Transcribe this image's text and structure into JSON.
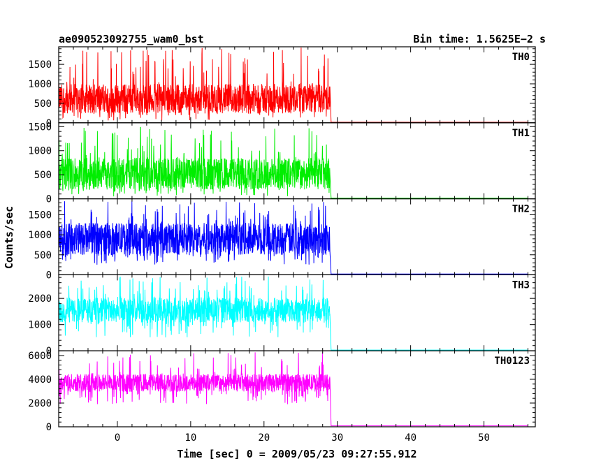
{
  "chart_data": {
    "type": "line",
    "title_left": "ae090523092755_wam0_bst",
    "title_right": "Bin time: 1.5625E−2 s",
    "xlabel": "Time [sec] 0 = 2009/05/23 09:27:55.912",
    "ylabel": "Counts/sec",
    "xlim": [
      -8,
      57
    ],
    "x_ticks": [
      0,
      10,
      20,
      30,
      40,
      50
    ],
    "data_start": -8,
    "burst_end": 29,
    "data_end": 56,
    "grid": false,
    "panels": [
      {
        "name": "TH0",
        "color": "#ff0000",
        "ylim": [
          0,
          1950
        ],
        "y_ticks": [
          0,
          500,
          1000,
          1500
        ],
        "mean": 620,
        "spread": 380,
        "floor": 60,
        "spike_max": 1950,
        "post_level": 15
      },
      {
        "name": "TH1",
        "color": "#00ee00",
        "ylim": [
          0,
          1580
        ],
        "y_ticks": [
          0,
          500,
          1000,
          1500
        ],
        "mean": 520,
        "spread": 330,
        "floor": 50,
        "spike_max": 1500,
        "post_level": 15
      },
      {
        "name": "TH2",
        "color": "#0000ff",
        "ylim": [
          0,
          1900
        ],
        "y_ticks": [
          0,
          500,
          1000,
          1500
        ],
        "mean": 900,
        "spread": 400,
        "floor": 250,
        "spike_max": 1850,
        "post_level": 20
      },
      {
        "name": "TH3",
        "color": "#00ffff",
        "ylim": [
          0,
          2900
        ],
        "y_ticks": [
          0,
          1000,
          2000
        ],
        "mean": 1550,
        "spread": 480,
        "floor": 500,
        "spike_max": 2850,
        "post_level": 30
      },
      {
        "name": "TH0123",
        "color": "#ff00ff",
        "ylim": [
          0,
          6400
        ],
        "y_ticks": [
          0,
          2000,
          4000,
          6000
        ],
        "mean": 3700,
        "spread": 750,
        "floor": 1900,
        "spike_max": 6300,
        "post_level": 80
      }
    ]
  }
}
